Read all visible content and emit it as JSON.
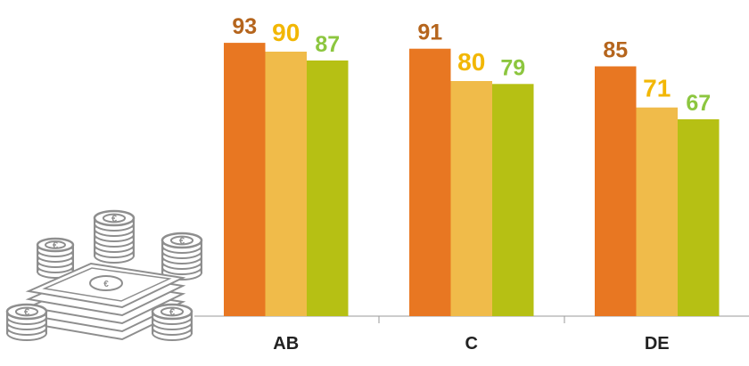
{
  "illustration": {
    "icon": "euro-money-stack-icon",
    "coin_symbol": "€",
    "color": "#8e8e8e"
  },
  "chart_data": {
    "type": "bar",
    "categories": [
      "AB",
      "C",
      "DE"
    ],
    "series": [
      {
        "values": [
          93,
          91,
          85
        ],
        "color": "#e87722",
        "label_color": "#b5651d"
      },
      {
        "values": [
          90,
          80,
          71
        ],
        "color": "#f0bb4a",
        "label_color": "#f2b705"
      },
      {
        "values": [
          87,
          79,
          67
        ],
        "color": "#b6c014",
        "label_color": "#8cc63f"
      }
    ],
    "ylim": [
      0,
      100
    ],
    "grid": false,
    "legend": "none"
  }
}
